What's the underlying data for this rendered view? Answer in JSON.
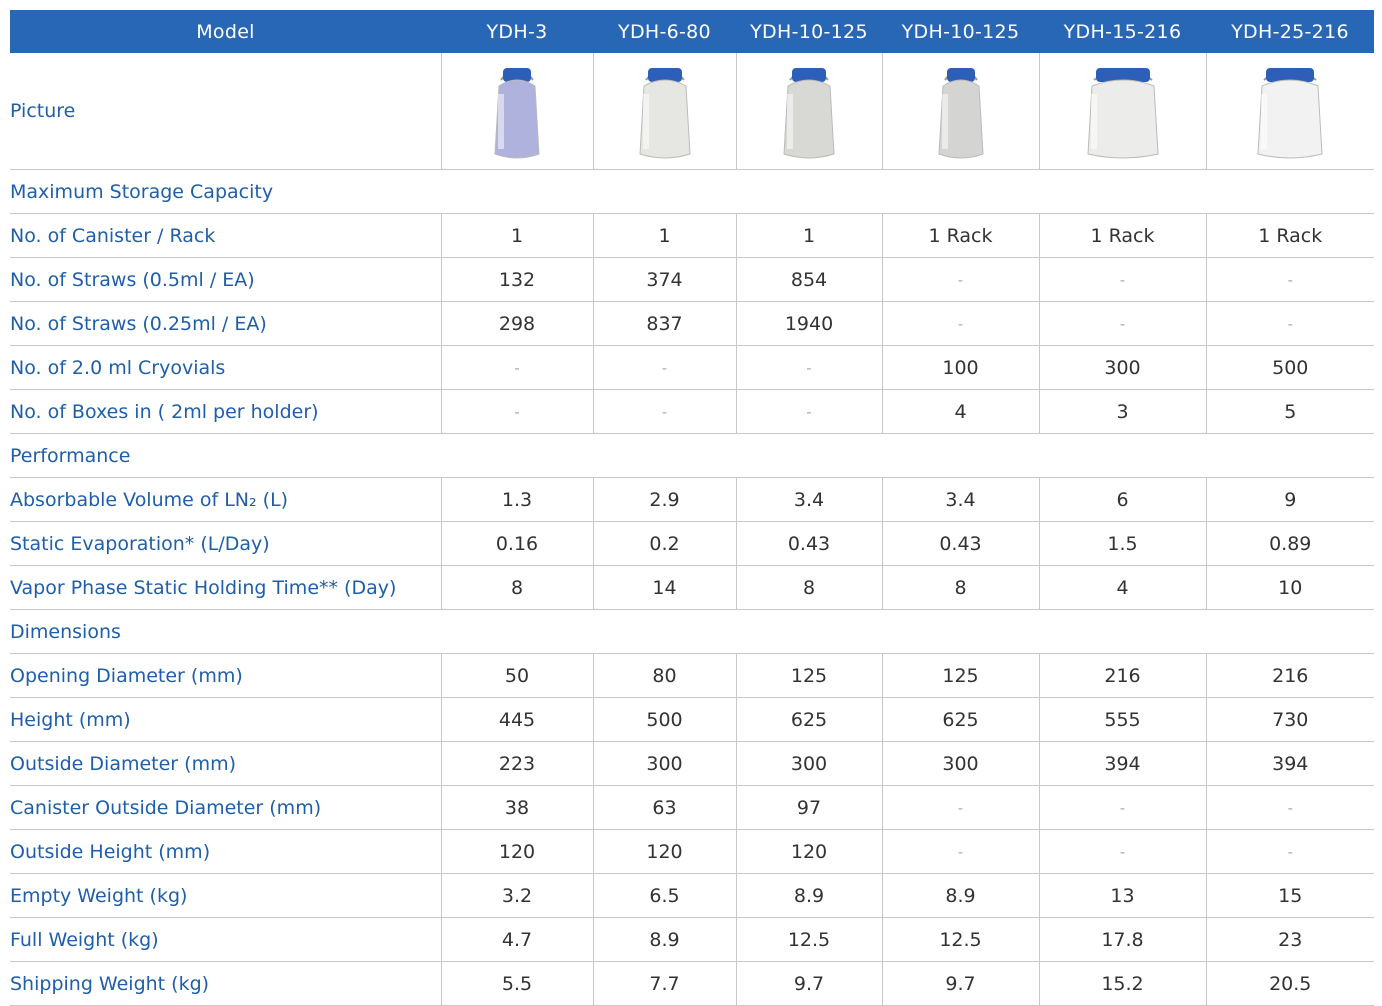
{
  "header": [
    "Model",
    "YDH-3",
    "YDH-6-80",
    "YDH-10-125",
    "YDH-10-125",
    "YDH-15-216",
    "YDH-25-216"
  ],
  "picture_label": "Picture",
  "rows": [
    {
      "label": "Maximum Storage Capacity"
    },
    {
      "label": "No. of Canister / Rack",
      "cells": [
        "1",
        "1",
        "1",
        "1 Rack",
        "1 Rack",
        "1 Rack"
      ]
    },
    {
      "label": "No. of Straws (0.5ml / EA)",
      "cells": [
        "132",
        "374",
        "854",
        "-",
        "-",
        "-"
      ]
    },
    {
      "label": "No. of Straws (0.25ml / EA)",
      "cells": [
        "298",
        "837",
        "1940",
        "-",
        "-",
        "-"
      ]
    },
    {
      "label": "No. of 2.0 ml Cryovials",
      "cells": [
        "-",
        "-",
        "-",
        "100",
        "300",
        "500"
      ]
    },
    {
      "label": "No. of Boxes in ( 2ml per holder)",
      "cells": [
        "-",
        "-",
        "-",
        "4",
        "3",
        "5"
      ]
    },
    {
      "label": "Performance"
    },
    {
      "label": "Absorbable Volume of LN₂ (L)",
      "cells": [
        "1.3",
        "2.9",
        "3.4",
        "3.4",
        "6",
        "9"
      ]
    },
    {
      "label": "Static Evaporation* (L/Day)",
      "cells": [
        "0.16",
        "0.2",
        "0.43",
        "0.43",
        "1.5",
        "0.89"
      ]
    },
    {
      "label": "Vapor Phase Static Holding Time** (Day)",
      "cells": [
        "8",
        "14",
        "8",
        "8",
        "4",
        "10"
      ]
    },
    {
      "label": "Dimensions"
    },
    {
      "label": "Opening Diameter (mm)",
      "cells": [
        "50",
        "80",
        "125",
        "125",
        "216",
        "216"
      ]
    },
    {
      "label": "Height (mm)",
      "cells": [
        "445",
        "500",
        "625",
        "625",
        "555",
        "730"
      ]
    },
    {
      "label": "Outside Diameter (mm)",
      "cells": [
        "223",
        "300",
        "300",
        "300",
        "394",
        "394"
      ]
    },
    {
      "label": "Canister Outside Diameter (mm)",
      "cells": [
        "38",
        "63",
        "97",
        "-",
        "-",
        "-"
      ]
    },
    {
      "label": "Outside Height (mm)",
      "cells": [
        "120",
        "120",
        "120",
        "-",
        "-",
        "-"
      ]
    },
    {
      "label": "Empty Weight (kg)",
      "cells": [
        "3.2",
        "6.5",
        "8.9",
        "8.9",
        "13",
        "15"
      ]
    },
    {
      "label": "Full Weight (kg)",
      "cells": [
        "4.7",
        "8.9",
        "12.5",
        "12.5",
        "17.8",
        "23"
      ]
    },
    {
      "label": "Shipping Weight (kg)",
      "cells": [
        "5.5",
        "7.7",
        "9.7",
        "9.7",
        "15.2",
        "20.5"
      ]
    }
  ]
}
